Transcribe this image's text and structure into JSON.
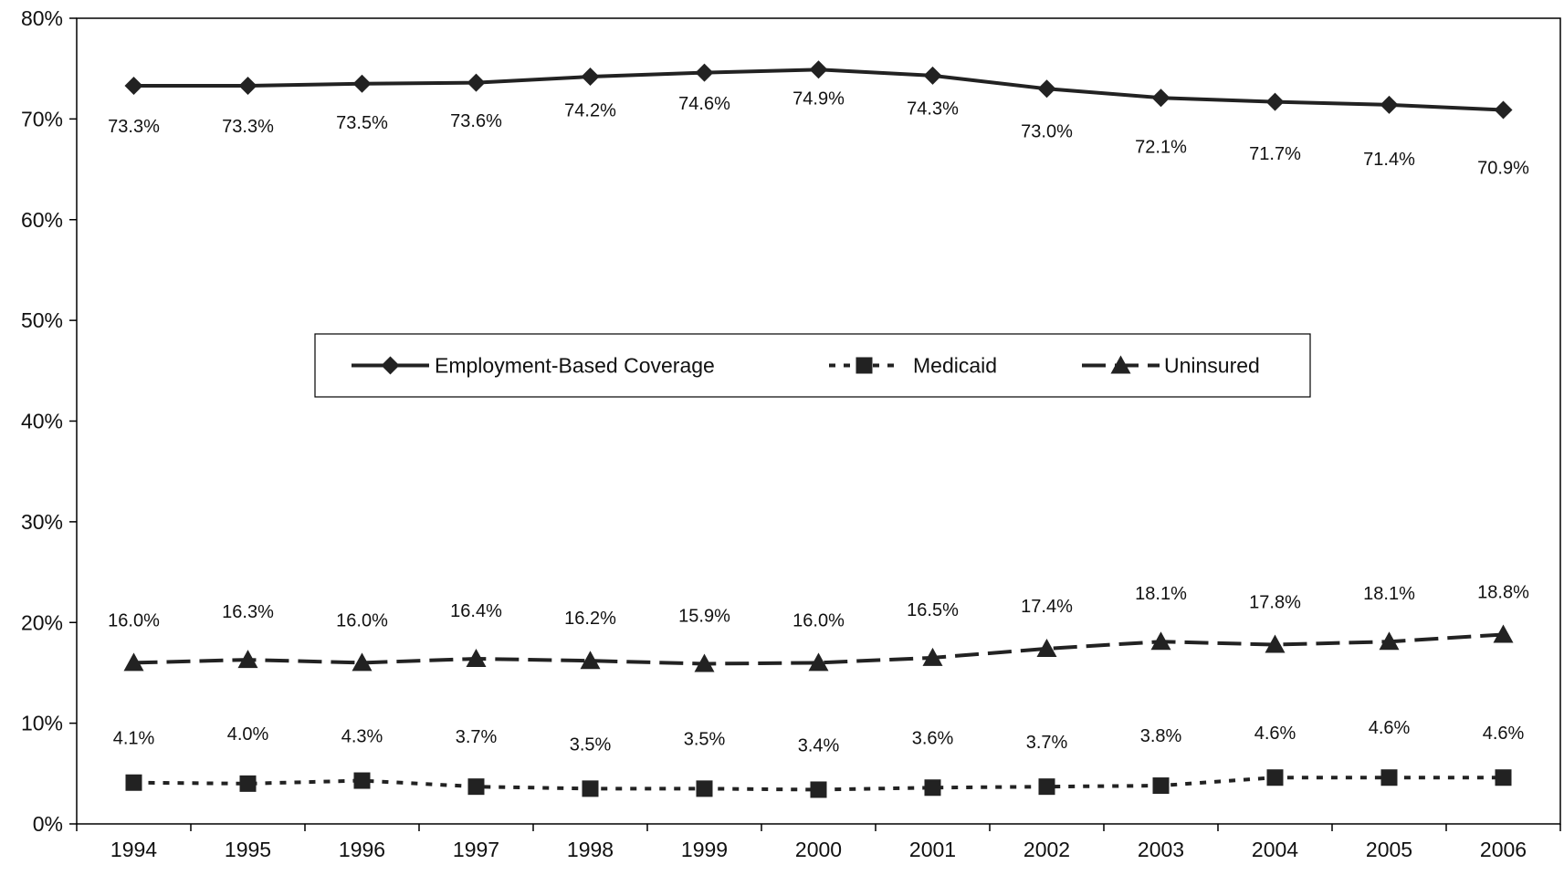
{
  "chart_data": {
    "type": "line",
    "title": "",
    "xlabel": "",
    "ylabel": "",
    "categories": [
      "1994",
      "1995",
      "1996",
      "1997",
      "1998",
      "1999",
      "2000",
      "2001",
      "2002",
      "2003",
      "2004",
      "2005",
      "2006"
    ],
    "ylim": [
      0,
      80
    ],
    "yticks": [
      0,
      10,
      20,
      30,
      40,
      50,
      60,
      70,
      80
    ],
    "ytick_labels": [
      "0%",
      "10%",
      "20%",
      "30%",
      "40%",
      "50%",
      "60%",
      "70%",
      "80%"
    ],
    "grid": false,
    "legend_placement": "center",
    "series": [
      {
        "name": "Employment-Based Coverage",
        "marker": "diamond",
        "line_style": "solid",
        "values": [
          73.3,
          73.3,
          73.5,
          73.6,
          74.2,
          74.6,
          74.9,
          74.3,
          73.0,
          72.1,
          71.7,
          71.4,
          70.9
        ],
        "labels": [
          "73.3%",
          "73.3%",
          "73.5%",
          "73.6%",
          "74.2%",
          "74.6%",
          "74.9%",
          "74.3%",
          "73.0%",
          "72.1%",
          "71.7%",
          "71.4%",
          "70.9%"
        ]
      },
      {
        "name": "Medicaid",
        "marker": "square",
        "line_style": "dotted",
        "values": [
          4.1,
          4.0,
          4.3,
          3.7,
          3.5,
          3.5,
          3.4,
          3.6,
          3.7,
          3.8,
          4.6,
          4.6,
          4.6
        ],
        "labels": [
          "4.1%",
          "4.0%",
          "4.3%",
          "3.7%",
          "3.5%",
          "3.5%",
          "3.4%",
          "3.6%",
          "3.7%",
          "3.8%",
          "4.6%",
          "4.6%",
          "4.6%"
        ]
      },
      {
        "name": "Uninsured",
        "marker": "triangle",
        "line_style": "dashed",
        "values": [
          16.0,
          16.3,
          16.0,
          16.4,
          16.2,
          15.9,
          16.0,
          16.5,
          17.4,
          18.1,
          17.8,
          18.1,
          18.8
        ],
        "labels": [
          "16.0%",
          "16.3%",
          "16.0%",
          "16.4%",
          "16.2%",
          "15.9%",
          "16.0%",
          "16.5%",
          "17.4%",
          "18.1%",
          "17.8%",
          "18.1%",
          "18.8%"
        ]
      }
    ],
    "colors": {
      "line": "#222222",
      "axis": "#000000"
    }
  }
}
